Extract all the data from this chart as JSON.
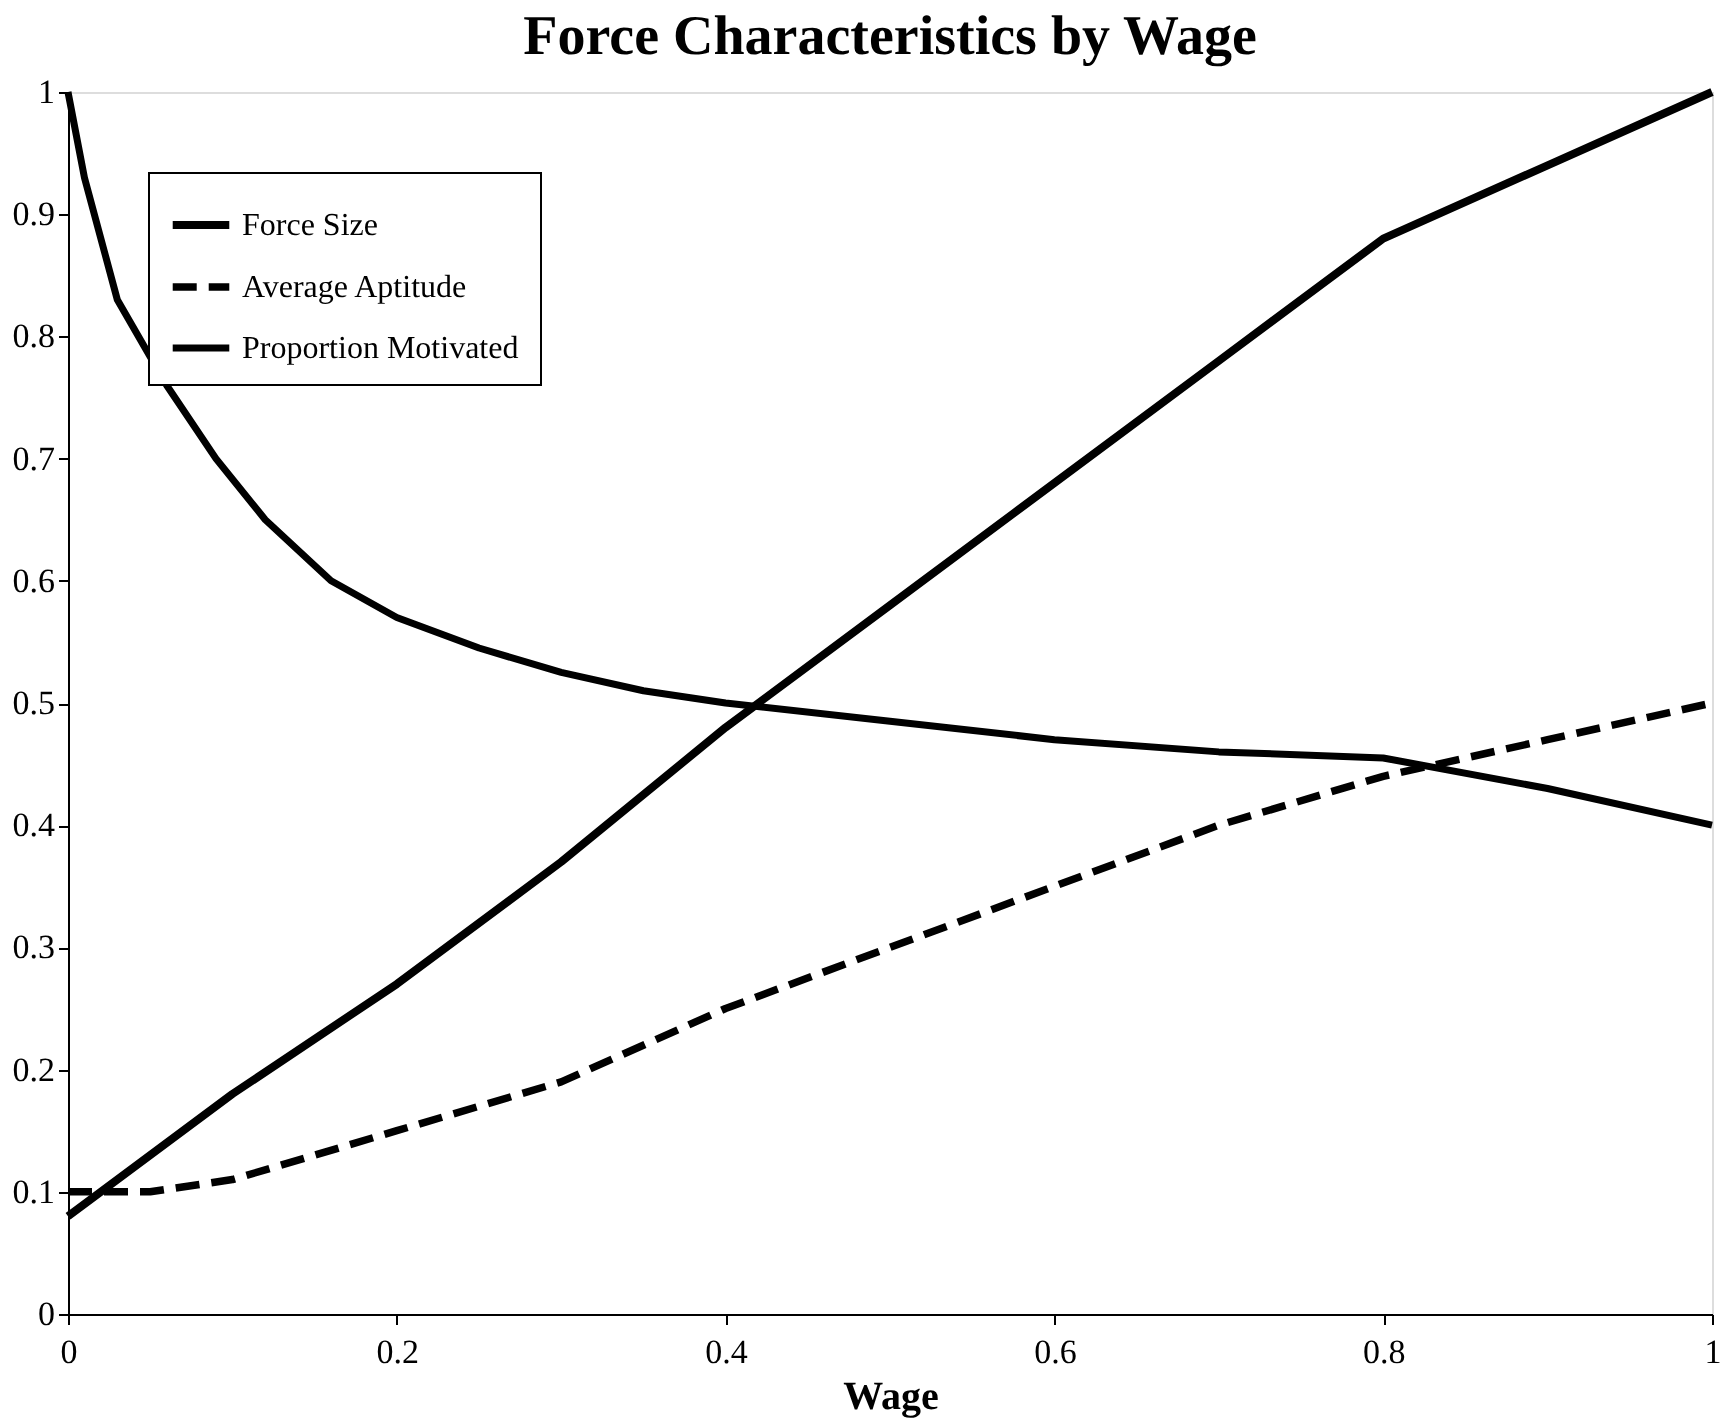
{
  "chart_data": {
    "type": "line",
    "title": "Force Characteristics by Wage",
    "xlabel": "Wage",
    "xlim": [
      0,
      1
    ],
    "xticks": [
      0,
      0.2,
      0.4,
      0.6,
      0.8,
      1
    ],
    "ylim": [
      0,
      1
    ],
    "yticks": [
      0,
      0.1,
      0.2,
      0.3,
      0.4,
      0.5,
      0.6,
      0.7,
      0.8,
      0.9,
      1
    ],
    "grid": false,
    "legend": "top left",
    "marker": "none",
    "series": [
      {
        "name": "Force Size",
        "color": "#000000",
        "line_style": "solid",
        "x": [
          0,
          0.1,
          0.2,
          0.3,
          0.4,
          0.5,
          0.6,
          0.7,
          0.8,
          0.9,
          1
        ],
        "values": [
          0.08,
          0.18,
          0.27,
          0.37,
          0.48,
          0.58,
          0.68,
          0.78,
          0.88,
          0.94,
          1.0
        ]
      },
      {
        "name": "Average Aptitude",
        "color": "#000000",
        "line_style": "dashed",
        "x": [
          0,
          0.05,
          0.1,
          0.2,
          0.3,
          0.4,
          0.5,
          0.6,
          0.7,
          0.8,
          0.9,
          1
        ],
        "values": [
          0.1,
          0.1,
          0.11,
          0.15,
          0.19,
          0.25,
          0.3,
          0.35,
          0.4,
          0.44,
          0.47,
          0.5
        ]
      },
      {
        "name": "Proportion Motivated",
        "color": "#000000",
        "line_style": "solid",
        "x": [
          0,
          0.01,
          0.03,
          0.06,
          0.09,
          0.12,
          0.16,
          0.2,
          0.25,
          0.3,
          0.35,
          0.4,
          0.5,
          0.6,
          0.7,
          0.8,
          0.9,
          1
        ],
        "values": [
          1.0,
          0.93,
          0.83,
          0.76,
          0.7,
          0.65,
          0.6,
          0.57,
          0.545,
          0.525,
          0.51,
          0.5,
          0.485,
          0.47,
          0.46,
          0.455,
          0.43,
          0.4
        ]
      }
    ]
  }
}
